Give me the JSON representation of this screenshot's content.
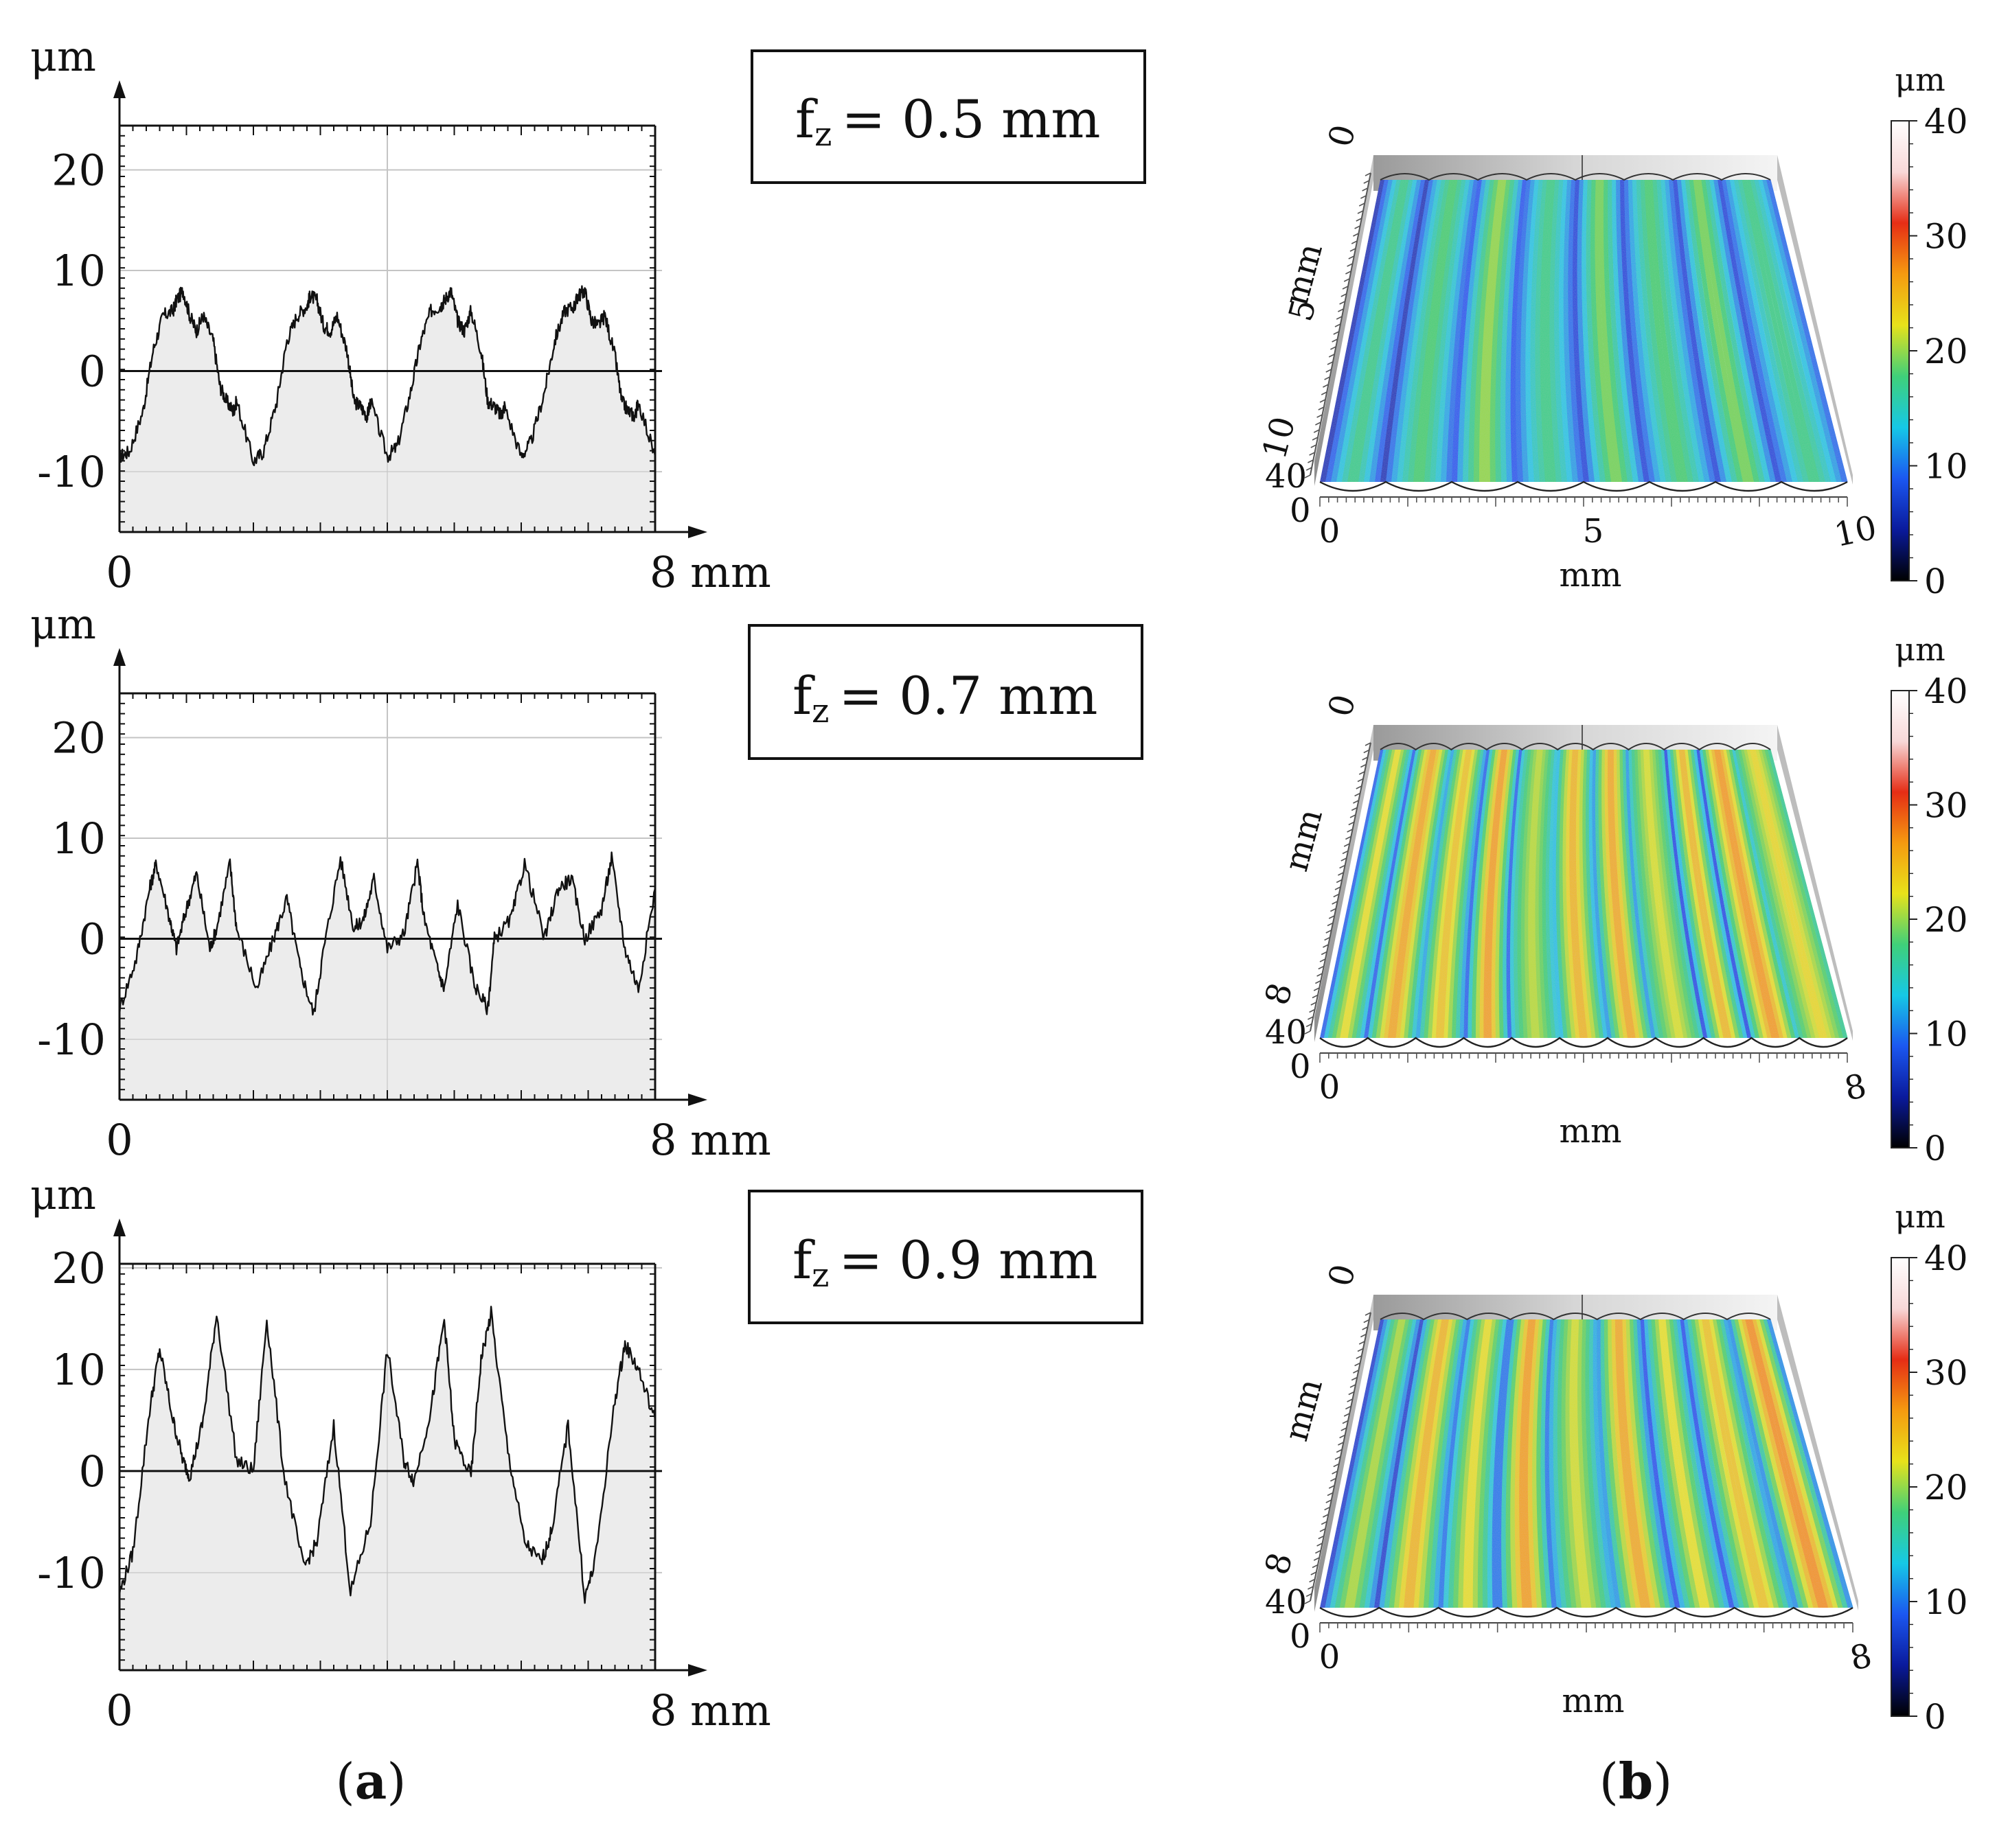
{
  "figure": {
    "label_a": "(a)",
    "label_b": "(b)",
    "letter_a": "a",
    "letter_b": "b"
  },
  "colors": {
    "profile_line": "#111111",
    "profile_fill": "#ececec",
    "grid": "#c4c4c4",
    "colorbar_stops": [
      "#000000",
      "#0a1a9c",
      "#1b57f0",
      "#16c8e6",
      "#3fd07a",
      "#e8e21a",
      "#f59a10",
      "#e62d15",
      "#f8d8d8",
      "#ffffff"
    ]
  },
  "chart_data": [
    {
      "type": "line",
      "panel": "a",
      "annotation": "fz = 0.5 mm",
      "annotation_base": "f",
      "annotation_sub": "z",
      "annotation_rest": "= 0.5 mm",
      "ylabel": "μm",
      "xlabel": "8 mm",
      "x_tick_labels": [
        "0",
        "8 mm"
      ],
      "y_tick_labels": [
        "20",
        "10",
        "0",
        "-10"
      ],
      "y_ticks": [
        20,
        10,
        0,
        -10
      ],
      "xlim": [
        0,
        8
      ],
      "ylim": [
        -16,
        24.4
      ],
      "x": [
        0,
        0.15,
        0.35,
        0.5,
        0.65,
        0.8,
        0.85,
        0.95,
        1.05,
        1.15,
        1.25,
        1.4,
        1.5,
        1.6,
        1.7,
        1.75,
        2.0,
        2.15,
        2.35,
        2.5,
        2.65,
        2.8,
        2.85,
        2.95,
        3.05,
        3.15,
        3.25,
        3.4,
        3.5,
        3.6,
        3.7,
        3.75,
        4.0,
        4.15,
        4.35,
        4.5,
        4.65,
        4.8,
        4.85,
        4.95,
        5.05,
        5.15,
        5.25,
        5.4,
        5.5,
        5.6,
        5.7,
        5.75,
        6.0,
        6.15,
        6.35,
        6.5,
        6.65,
        6.8,
        6.85,
        6.95,
        7.05,
        7.15,
        7.25,
        7.4,
        7.5,
        7.6,
        7.7,
        7.75,
        8.0
      ],
      "values": [
        -8.5,
        -8,
        -4,
        2,
        5.5,
        6,
        7,
        8,
        5.5,
        4,
        5.5,
        3,
        -1.5,
        -3,
        -4,
        -3,
        -9,
        -8,
        -3,
        3,
        5.5,
        6.5,
        7.5,
        7,
        4.5,
        4,
        5.5,
        2,
        -3,
        -3.5,
        -4.5,
        -3,
        -8.5,
        -7.5,
        -2,
        3,
        6,
        6.5,
        7,
        8,
        5,
        4,
        6,
        2,
        -3,
        -3.5,
        -4.5,
        -3.5,
        -8.5,
        -7,
        -2,
        3,
        6,
        6.5,
        7.5,
        8,
        5,
        4.5,
        5.5,
        1.5,
        -3,
        -4,
        -4.5,
        -3,
        -8.5
      ]
    },
    {
      "type": "line",
      "panel": "a",
      "annotation": "fz = 0.7 mm",
      "annotation_base": "f",
      "annotation_sub": "z",
      "annotation_rest": "= 0.7 mm",
      "ylabel": "μm",
      "xlabel": "8 mm",
      "x_tick_labels": [
        "0",
        "8 mm"
      ],
      "y_tick_labels": [
        "20",
        "10",
        "0",
        "-10"
      ],
      "y_ticks": [
        20,
        10,
        0,
        -10
      ],
      "xlim": [
        0,
        8
      ],
      "ylim": [
        -16,
        24.4
      ],
      "x": [
        0,
        0.25,
        0.45,
        0.55,
        0.75,
        0.85,
        1.0,
        1.15,
        1.35,
        1.45,
        1.65,
        1.75,
        2.05,
        2.3,
        2.5,
        2.7,
        2.9,
        3.05,
        3.3,
        3.5,
        3.65,
        3.8,
        4.0,
        4.25,
        4.45,
        4.55,
        4.75,
        4.85,
        5.05,
        5.3,
        5.5,
        5.6,
        5.85,
        6.05,
        6.35,
        6.55,
        6.75,
        6.95,
        7.2,
        7.35,
        7.55,
        7.75,
        8.0
      ],
      "values": [
        -7,
        -2,
        5,
        7.5,
        2,
        -1,
        3,
        6.5,
        -1,
        1,
        7.5,
        1,
        -5,
        0,
        4,
        -3,
        -7.5,
        -1,
        8,
        1,
        2,
        6,
        -1,
        0.5,
        7.5,
        2,
        -3,
        -5,
        3.5,
        -4.5,
        -7,
        0,
        2,
        7.5,
        0,
        5,
        6,
        0,
        3,
        8,
        -1,
        -5,
        5
      ]
    },
    {
      "type": "line",
      "panel": "a",
      "annotation": "fz = 0.9 mm",
      "annotation_base": "f",
      "annotation_sub": "z",
      "annotation_rest": "= 0.9 mm",
      "ylabel": "μm",
      "xlabel": "8 mm",
      "x_tick_labels": [
        "0",
        "8 mm"
      ],
      "y_tick_labels": [
        "20",
        "10",
        "0",
        "-10"
      ],
      "y_ticks": [
        20,
        10,
        0,
        -10
      ],
      "xlim": [
        0,
        8
      ],
      "ylim": [
        -19.6,
        20.4
      ],
      "x": [
        0,
        0.2,
        0.45,
        0.6,
        0.8,
        0.95,
        1.05,
        1.25,
        1.45,
        1.75,
        2.0,
        2.2,
        2.45,
        2.75,
        2.95,
        3.2,
        3.45,
        3.75,
        4.0,
        4.25,
        4.4,
        4.65,
        4.85,
        5.0,
        5.25,
        5.4,
        5.55,
        5.8,
        6.05,
        6.3,
        6.45,
        6.7,
        6.95,
        7.1,
        7.4,
        7.55,
        7.75,
        8.0
      ],
      "values": [
        -12,
        -8,
        6,
        12,
        5,
        1,
        -0.5,
        5,
        15.5,
        1,
        0,
        15,
        0,
        -9.5,
        -7,
        4.5,
        -12,
        -5,
        12,
        1,
        -1,
        6,
        15,
        3,
        -0.5,
        11,
        15.5,
        2,
        -7,
        -9,
        -6,
        4.5,
        -12.5,
        -9,
        7,
        12.5,
        10,
        5
      ]
    }
  ],
  "panel_b": [
    {
      "view": "3D surface",
      "left_axis_top": "0",
      "left_axis_mid": "5",
      "left_axis_bottom": "10",
      "left_axis_label": "mm",
      "z_label": "40",
      "origin_label": "0",
      "x_ticks": [
        "0",
        "5",
        "10"
      ],
      "x_label": "mm",
      "colorbar_unit": "μm",
      "colorbar_ticks": [
        "40",
        "30",
        "20",
        "10",
        "0"
      ],
      "stripe_count": 8,
      "stripe_peaks": [
        15,
        16,
        19,
        15,
        18,
        16,
        18,
        15
      ],
      "stripe_valleys": [
        1,
        5,
        3,
        5,
        2,
        5,
        2,
        5
      ]
    },
    {
      "view": "3D surface",
      "left_axis_top": "0",
      "left_axis_mid": "",
      "left_axis_bottom": "8",
      "left_axis_label": "mm",
      "z_label": "40",
      "origin_label": "0",
      "x_ticks": [
        "0",
        "8"
      ],
      "x_label": "mm",
      "colorbar_unit": "μm",
      "colorbar_ticks": [
        "40",
        "30",
        "20",
        "10",
        "0"
      ],
      "stripe_count": 11,
      "stripe_peaks": [
        22,
        26,
        24,
        27,
        20,
        25,
        26,
        21,
        25,
        27,
        22
      ],
      "stripe_valleys": [
        3,
        8,
        6,
        2,
        9,
        7,
        5,
        10,
        1,
        8,
        12
      ]
    },
    {
      "view": "3D surface",
      "left_axis_top": "0",
      "left_axis_mid": "",
      "left_axis_bottom": "8",
      "left_axis_label": "mm",
      "z_label": "40",
      "origin_label": "0",
      "x_ticks": [
        "0",
        "8"
      ],
      "x_label": "mm",
      "colorbar_unit": "μm",
      "colorbar_ticks": [
        "40",
        "30",
        "20",
        "10",
        "0"
      ],
      "stripe_count": 9,
      "stripe_peaks": [
        20,
        25,
        22,
        27,
        21,
        26,
        22,
        24,
        28
      ],
      "stripe_valleys": [
        1,
        6,
        4,
        3,
        7,
        5,
        2,
        6,
        4
      ]
    }
  ]
}
